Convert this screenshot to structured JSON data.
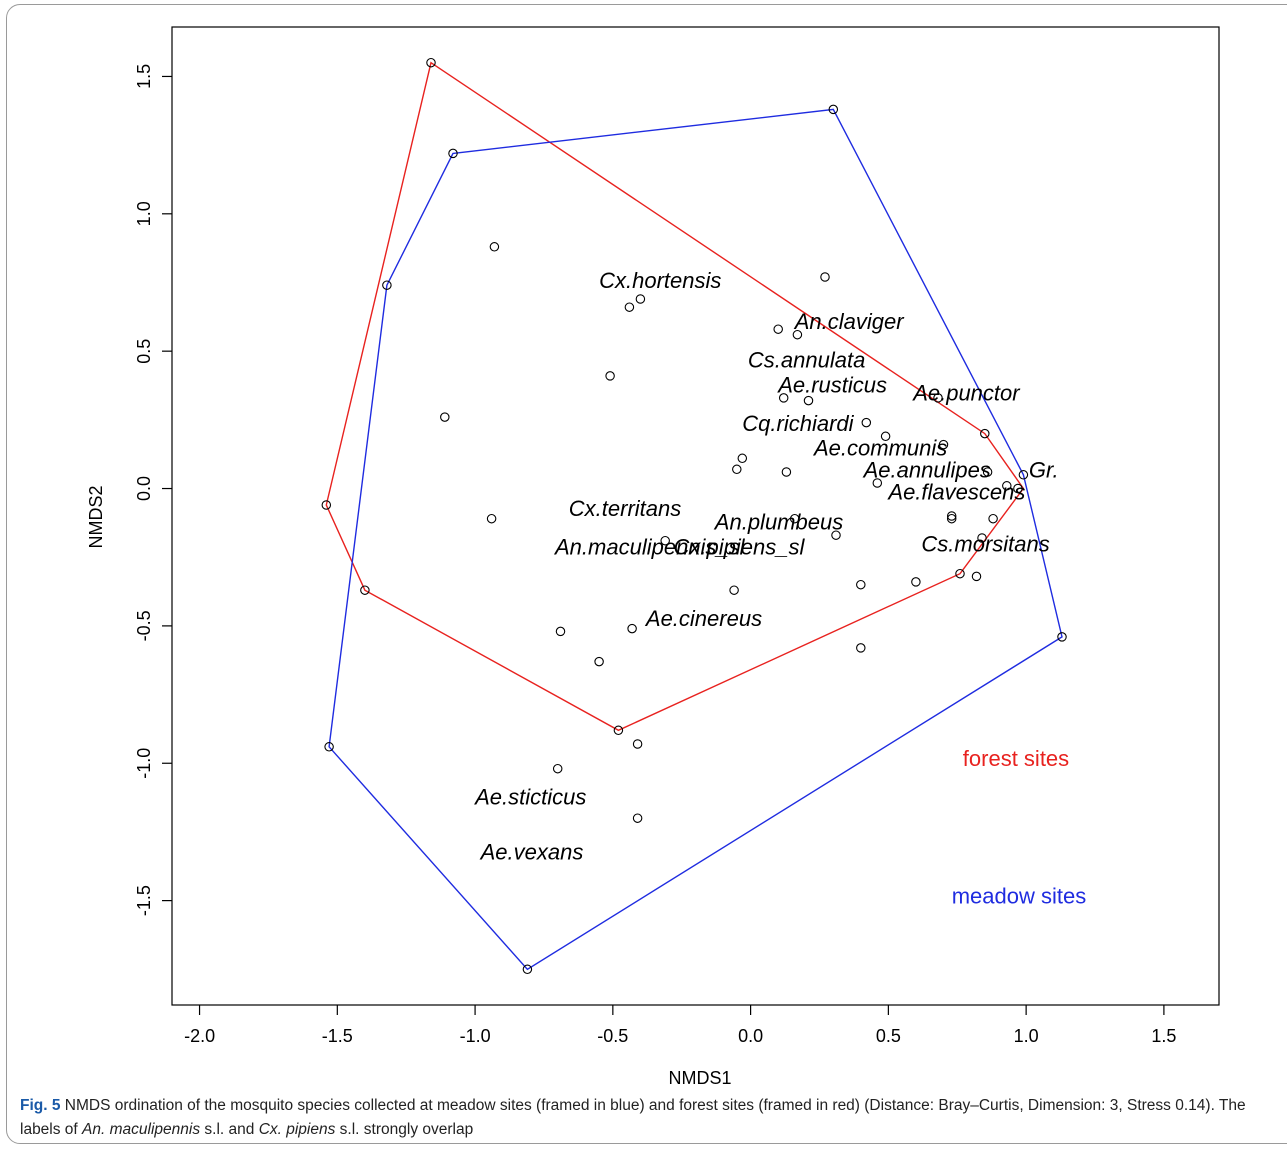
{
  "chart_data": {
    "type": "scatter",
    "xlabel": "NMDS1",
    "ylabel": "NMDS2",
    "xlim": [
      -2.1,
      1.7
    ],
    "ylim": [
      -1.88,
      1.68
    ],
    "xticks": [
      -2.0,
      -1.5,
      -1.0,
      -0.5,
      0.0,
      0.5,
      1.0,
      1.5
    ],
    "yticks": [
      -1.5,
      -1.0,
      -0.5,
      0.0,
      0.5,
      1.0,
      1.5
    ],
    "xtick_labels": [
      "-2.0",
      "-1.5",
      "-1.0",
      "-0.5",
      "0.0",
      "0.5",
      "1.0",
      "1.5"
    ],
    "ytick_labels": [
      "-1.5",
      "-1.0",
      "-0.5",
      "0.0",
      "0.5",
      "1.0",
      "1.5"
    ],
    "grid": false,
    "points": [
      [
        -1.16,
        1.55
      ],
      [
        0.3,
        1.38
      ],
      [
        -1.08,
        1.22
      ],
      [
        -1.32,
        0.74
      ],
      [
        -0.93,
        0.88
      ],
      [
        0.27,
        0.77
      ],
      [
        -0.4,
        0.69
      ],
      [
        -0.44,
        0.66
      ],
      [
        0.1,
        0.58
      ],
      [
        0.17,
        0.56
      ],
      [
        -0.51,
        0.41
      ],
      [
        0.12,
        0.33
      ],
      [
        0.21,
        0.32
      ],
      [
        0.68,
        0.33
      ],
      [
        -1.11,
        0.26
      ],
      [
        0.42,
        0.24
      ],
      [
        0.49,
        0.19
      ],
      [
        0.85,
        0.2
      ],
      [
        0.7,
        0.16
      ],
      [
        -0.03,
        0.11
      ],
      [
        -0.05,
        0.07
      ],
      [
        0.13,
        0.06
      ],
      [
        0.86,
        0.06
      ],
      [
        0.99,
        0.05
      ],
      [
        0.46,
        0.02
      ],
      [
        0.93,
        0.01
      ],
      [
        0.97,
        0.0
      ],
      [
        -1.54,
        -0.06
      ],
      [
        -0.94,
        -0.11
      ],
      [
        0.73,
        -0.1
      ],
      [
        0.73,
        -0.11
      ],
      [
        0.88,
        -0.11
      ],
      [
        0.16,
        -0.11
      ],
      [
        0.31,
        -0.17
      ],
      [
        -0.31,
        -0.19
      ],
      [
        0.84,
        -0.18
      ],
      [
        0.76,
        -0.31
      ],
      [
        0.82,
        -0.32
      ],
      [
        0.6,
        -0.34
      ],
      [
        0.4,
        -0.35
      ],
      [
        -0.06,
        -0.37
      ],
      [
        -1.4,
        -0.37
      ],
      [
        -0.43,
        -0.51
      ],
      [
        -0.69,
        -0.52
      ],
      [
        -0.55,
        -0.63
      ],
      [
        0.4,
        -0.58
      ],
      [
        1.13,
        -0.54
      ],
      [
        -0.48,
        -0.88
      ],
      [
        -0.41,
        -0.93
      ],
      [
        -1.53,
        -0.94
      ],
      [
        -0.7,
        -1.02
      ],
      [
        -0.41,
        -1.2
      ],
      [
        -0.81,
        -1.75
      ]
    ],
    "hulls": [
      {
        "color": "#e8221f",
        "points": [
          [
            -1.16,
            1.55
          ],
          [
            0.85,
            0.2
          ],
          [
            0.99,
            0.0
          ],
          [
            0.76,
            -0.31
          ],
          [
            -0.48,
            -0.88
          ],
          [
            -1.4,
            -0.37
          ],
          [
            -1.54,
            -0.06
          ]
        ]
      },
      {
        "color": "#1f2ce0",
        "points": [
          [
            -1.08,
            1.22
          ],
          [
            0.3,
            1.38
          ],
          [
            0.99,
            0.05
          ],
          [
            1.13,
            -0.54
          ],
          [
            -0.81,
            -1.75
          ],
          [
            -1.53,
            -0.94
          ],
          [
            -1.32,
            0.74
          ]
        ]
      }
    ],
    "species_labels": [
      {
        "text": "Cx.hortensis",
        "x": -0.55,
        "y": 0.73
      },
      {
        "text": "An.claviger",
        "x": 0.16,
        "y": 0.58
      },
      {
        "text": "Cs.annulata",
        "x": -0.01,
        "y": 0.44
      },
      {
        "text": "Ae.rusticus",
        "x": 0.1,
        "y": 0.35
      },
      {
        "text": "Ae.punctor",
        "x": 0.59,
        "y": 0.32
      },
      {
        "text": "Cq.richiardi",
        "x": -0.03,
        "y": 0.21
      },
      {
        "text": "Ae.communis",
        "x": 0.23,
        "y": 0.12
      },
      {
        "text": "Ae.annulipes",
        "x": 0.41,
        "y": 0.04
      },
      {
        "text": "Gr.",
        "x": 1.01,
        "y": 0.04
      },
      {
        "text": "Ae.flavescens",
        "x": 0.5,
        "y": -0.04
      },
      {
        "text": "Cx.territans",
        "x": -0.66,
        "y": -0.1
      },
      {
        "text": "An.plumbeus",
        "x": -0.13,
        "y": -0.15
      },
      {
        "text": "An.maculipennis_sl",
        "x": -0.71,
        "y": -0.24
      },
      {
        "text": "Cx.pipiens_sl",
        "x": -0.28,
        "y": -0.24
      },
      {
        "text": "Cs.morsitans",
        "x": 0.62,
        "y": -0.23
      },
      {
        "text": "Ae.cinereus",
        "x": -0.38,
        "y": -0.5
      },
      {
        "text": "Ae.sticticus",
        "x": -1.0,
        "y": -1.15
      },
      {
        "text": "Ae.vexans",
        "x": -0.98,
        "y": -1.35
      }
    ],
    "legend": [
      {
        "text": "forest sites",
        "color": "#e8221f",
        "x": 0.77,
        "y": -1.01
      },
      {
        "text": "meadow sites",
        "color": "#1f2ce0",
        "x": 0.73,
        "y": -1.51
      }
    ]
  },
  "caption": {
    "fig_label": "Fig. 5",
    "text_a": "NMDS ordination of the mosquito species collected at meadow sites (framed in blue) and forest sites (framed in red) (Distance: Bray–Curtis, Dimension: 3, Stress 0.14). The labels of ",
    "species_a": "An. maculipennis",
    "text_b": " s.l. and ",
    "species_b": "Cx. pipiens",
    "text_c": " s.l. strongly overlap"
  }
}
